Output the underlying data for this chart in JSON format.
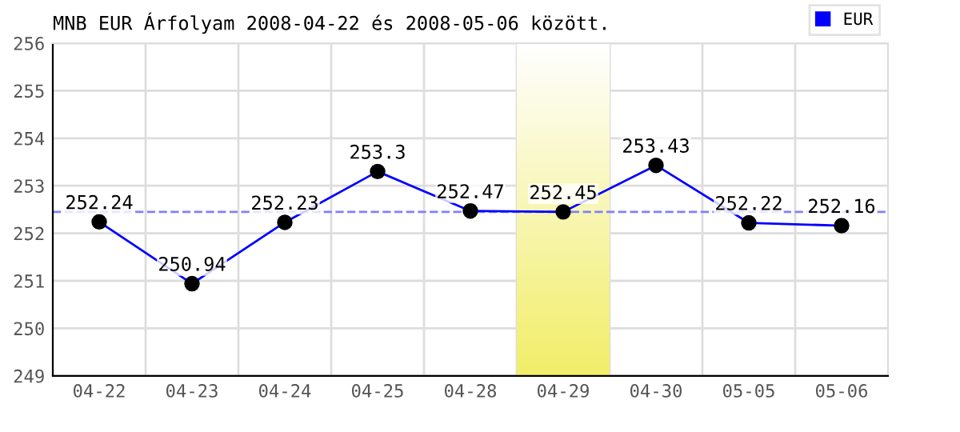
{
  "chart_data": {
    "type": "line",
    "title": "MNB EUR Árfolyam 2008-04-22 és 2008-05-06 között.",
    "categories": [
      "04-22",
      "04-23",
      "04-24",
      "04-25",
      "04-28",
      "04-29",
      "04-30",
      "05-05",
      "05-06"
    ],
    "series": [
      {
        "name": "EUR",
        "color": "#0000ff",
        "values": [
          252.24,
          250.94,
          252.23,
          253.3,
          252.47,
          252.45,
          253.43,
          252.22,
          252.16
        ]
      }
    ],
    "data_labels": true,
    "marker": "circle",
    "line_style": "solid",
    "ylim": [
      249,
      256
    ],
    "yticks": [
      249,
      250,
      251,
      252,
      253,
      254,
      255,
      256
    ],
    "ref_lines": [
      {
        "axis": "y",
        "value": 252.45,
        "color": "#8080ff",
        "line_style": "dashed"
      }
    ],
    "bands": [
      {
        "axis": "x",
        "from": "04-29",
        "to": "04-29",
        "color": "#f2ee6a"
      }
    ],
    "grid": true,
    "legend": "top right"
  }
}
